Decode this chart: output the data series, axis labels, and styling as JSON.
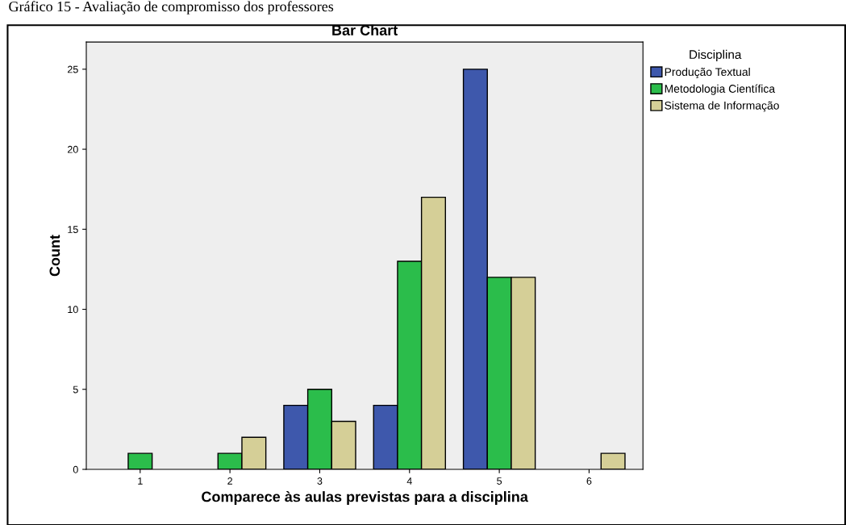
{
  "chart_data": {
    "type": "bar",
    "title": "Bar Chart",
    "xlabel": "Comparece às aulas previstas para a disciplina",
    "ylabel": "Count",
    "legend_title": "Disciplina",
    "annotations": [
      "Gráfico 15 - Avaliação de compromisso dos professores"
    ],
    "categories": [
      "1",
      "2",
      "3",
      "4",
      "5",
      "6"
    ],
    "series": [
      {
        "name": "Produção Textual",
        "color": "#3e58ac",
        "values": [
          null,
          null,
          4,
          4,
          25,
          null
        ]
      },
      {
        "name": "Metodologia Científica",
        "color": "#2bbd4b",
        "values": [
          1,
          1,
          5,
          13,
          12,
          null
        ]
      },
      {
        "name": "Sistema de Informação",
        "color": "#d5cf97",
        "values": [
          null,
          2,
          3,
          17,
          12,
          1
        ]
      }
    ],
    "ylim": [
      0,
      26.7
    ],
    "yticks": [
      0,
      5,
      10,
      15,
      20,
      25
    ],
    "grid": false,
    "legend": "top right"
  }
}
